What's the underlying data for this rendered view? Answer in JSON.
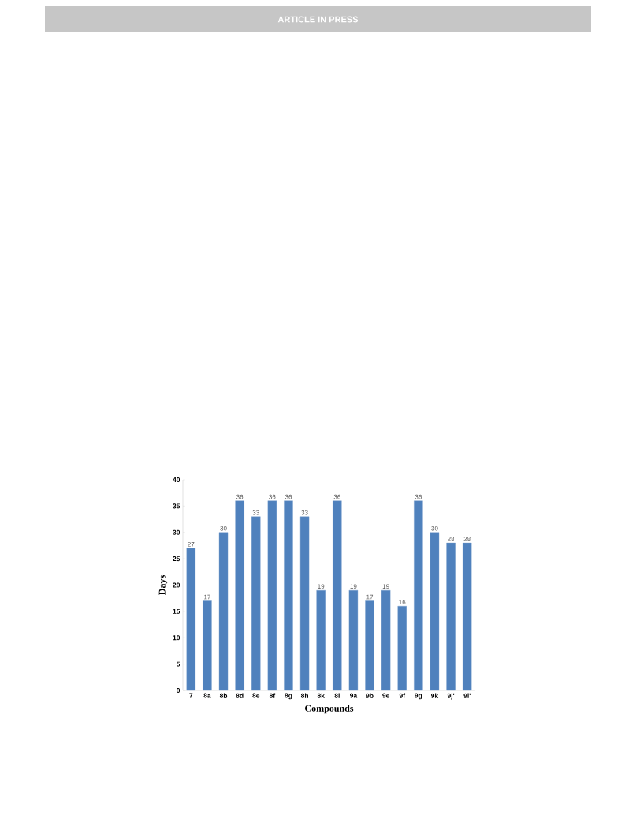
{
  "chart_data": {
    "type": "bar",
    "xlabel": "Compounds",
    "ylabel": "Days",
    "categories": [
      "7",
      "8a",
      "8b",
      "8d",
      "8e",
      "8f",
      "8g",
      "8h",
      "8k",
      "8l",
      "9a",
      "9b",
      "9e",
      "9f",
      "9g",
      "9k",
      "9j'",
      "9l'"
    ],
    "values": [
      27,
      17,
      30,
      36,
      33,
      36,
      36,
      33,
      19,
      36,
      19,
      17,
      19,
      16,
      36,
      30,
      28,
      28
    ],
    "color": "#4f81bd",
    "ylim": [
      0,
      40
    ],
    "yticks": [
      0,
      5,
      10,
      15,
      20,
      25,
      30,
      35,
      40
    ],
    "data_labels": true,
    "annotations": [
      "ARTICLE IN PRESS"
    ]
  }
}
